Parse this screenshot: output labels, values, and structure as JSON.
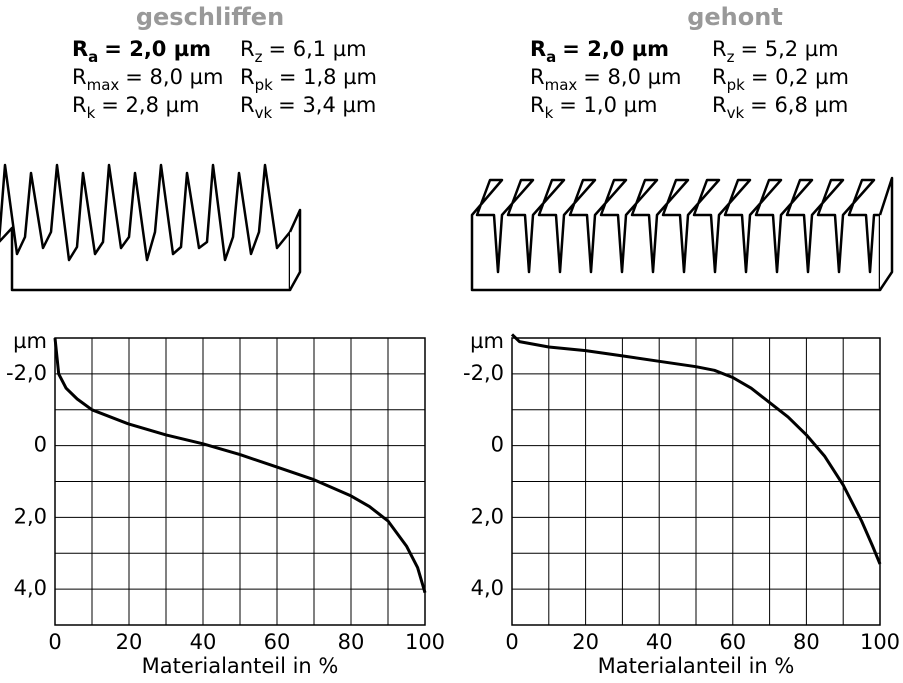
{
  "panels": [
    {
      "title": "geschliffen",
      "params": [
        [
          {
            "symbol": "R",
            "index": "a",
            "value": "= 2,0 µm",
            "bold": true
          },
          {
            "symbol": "R",
            "index": "z",
            "value": "= 6,1 µm",
            "bold": false
          }
        ],
        [
          {
            "symbol": "R",
            "index": "max",
            "value": "= 8,0 µm",
            "bold": false
          },
          {
            "symbol": "R",
            "index": "pk",
            "value": "= 1,8 µm",
            "bold": false
          }
        ],
        [
          {
            "symbol": "R",
            "index": "k",
            "value": "= 2,8 µm",
            "bold": false
          },
          {
            "symbol": "R",
            "index": "vk",
            "value": "= 3,4 µm",
            "bold": false
          }
        ]
      ]
    },
    {
      "title": "gehont",
      "params": [
        [
          {
            "symbol": "R",
            "index": "a",
            "value": "= 2,0 µm",
            "bold": true
          },
          {
            "symbol": "R",
            "index": "z",
            "value": "= 5,2 µm",
            "bold": false
          }
        ],
        [
          {
            "symbol": "R",
            "index": "max",
            "value": "= 8,0 µm",
            "bold": false
          },
          {
            "symbol": "R",
            "index": "pk",
            "value": "= 0,2 µm",
            "bold": false
          }
        ],
        [
          {
            "symbol": "R",
            "index": "k",
            "value": "= 1,0 µm",
            "bold": false
          },
          {
            "symbol": "R",
            "index": "vk",
            "value": "= 6,8 µm",
            "bold": false
          }
        ]
      ]
    }
  ],
  "chart_data": [
    {
      "type": "line",
      "ylabel": "µm",
      "xlabel": "Materialanteil in %",
      "color": "#000000",
      "x": [
        0,
        1,
        3,
        6,
        10,
        20,
        30,
        40,
        50,
        60,
        70,
        80,
        85,
        90,
        95,
        98,
        100
      ],
      "values": [
        -3.0,
        -2.0,
        -1.6,
        -1.3,
        -1.0,
        -0.6,
        -0.3,
        -0.05,
        0.25,
        0.6,
        0.95,
        1.4,
        1.7,
        2.1,
        2.8,
        3.4,
        4.1
      ],
      "xlim": [
        0,
        100
      ],
      "ylim": [
        -3,
        5
      ],
      "y_inverted": true,
      "xticks": [
        0,
        20,
        40,
        60,
        80,
        100
      ],
      "yticks": [
        {
          "value": -2,
          "label": "-2,0"
        },
        0,
        {
          "value": 2,
          "label": "2,0"
        },
        {
          "value": 4,
          "label": "4,0"
        }
      ],
      "grid_x": [
        0,
        10,
        20,
        30,
        40,
        50,
        60,
        70,
        80,
        90,
        100
      ],
      "grid_y": [
        -3,
        -2,
        -1,
        0,
        1,
        2,
        3,
        4,
        5
      ]
    },
    {
      "type": "line",
      "ylabel": "µm",
      "xlabel": "Materialanteil in %",
      "color": "#000000",
      "x": [
        0,
        2,
        10,
        20,
        30,
        40,
        50,
        55,
        60,
        65,
        70,
        75,
        80,
        85,
        90,
        95,
        98,
        100
      ],
      "values": [
        -3.1,
        -2.9,
        -2.75,
        -2.65,
        -2.5,
        -2.35,
        -2.2,
        -2.1,
        -1.9,
        -1.6,
        -1.2,
        -0.8,
        -0.3,
        0.3,
        1.1,
        2.1,
        2.8,
        3.3
      ],
      "xlim": [
        0,
        100
      ],
      "ylim": [
        -3,
        5
      ],
      "y_inverted": true,
      "xticks": [
        0,
        20,
        40,
        60,
        80,
        100
      ],
      "yticks": [
        {
          "value": -2,
          "label": "-2,0"
        },
        0,
        {
          "value": 2,
          "label": "2,0"
        },
        {
          "value": 4,
          "label": "4,0"
        }
      ],
      "grid_x": [
        0,
        10,
        20,
        30,
        40,
        50,
        60,
        70,
        80,
        90,
        100
      ],
      "grid_y": [
        -3,
        -2,
        -1,
        0,
        1,
        2,
        3,
        4,
        5
      ]
    }
  ]
}
